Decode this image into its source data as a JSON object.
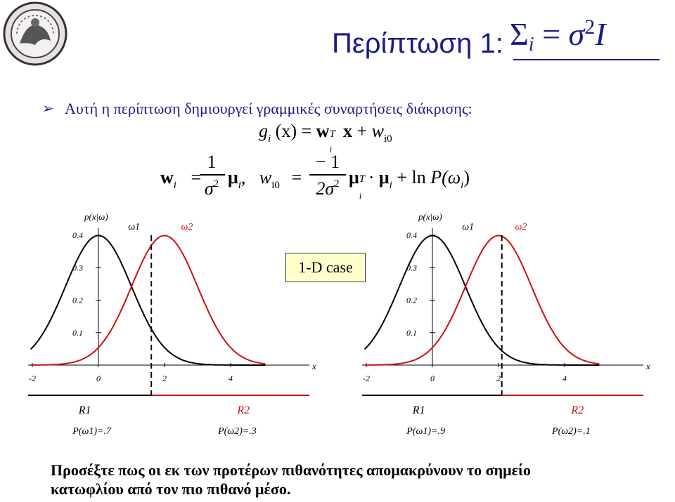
{
  "header": {
    "title": "Περίπτωση 1:",
    "formula": {
      "Sigma": "Σ",
      "sub": "i",
      "eq": "=",
      "sigma": "σ",
      "power": "2",
      "I": "I"
    }
  },
  "bullet": {
    "marker": "➢",
    "text": "Αυτή η περίπτωση δημιουργεί γραμμικές συναρτήσεις διάκρισης:"
  },
  "equations": {
    "g": "g",
    "i": "i",
    "x": "(x)",
    "eq": "=",
    "w": "w",
    "T": "T",
    "xb": "x",
    "plus": "+",
    "w_sym": "w",
    "i0": "i0",
    "one": "1",
    "minus_one": "− 1",
    "sigma2": "σ",
    "two": "2",
    "two_sigma": "2σ",
    "mu": "μ",
    "comma": ",",
    "dot": "·",
    "ln": "+ ln",
    "P": "P",
    "omega_open": "(ω",
    "close": ")"
  },
  "figure": {
    "case_label": "1-D case",
    "panels": [
      {
        "ylabel": "p(x|ω_i)",
        "prior_1": "P(ω_1)=.7",
        "prior_2": "P(ω_2)=.3",
        "region_1": "R",
        "region_1_sub": "1",
        "region_2": "R",
        "region_2_sub": "2",
        "threshold": 1.6,
        "y_ticks": [
          "0.4",
          "0.3",
          "0.2",
          "0.1"
        ],
        "x_ticks": [
          "-2",
          "0",
          "2",
          "4"
        ],
        "class_1": "ω",
        "class_1_sub": "1",
        "class_2": "ω",
        "class_2_sub": "2",
        "xlabel": "x"
      },
      {
        "ylabel": "p(x|ω_i)",
        "prior_1": "P(ω_1)=.9",
        "prior_2": "P(ω_2)=.1",
        "region_1": "R",
        "region_1_sub": "1",
        "region_2": "R",
        "region_2_sub": "2",
        "threshold": 2.1,
        "y_ticks": [
          "0.4",
          "0.3",
          "0.2",
          "0.1"
        ],
        "x_ticks": [
          "-2",
          "0",
          "2",
          "4"
        ],
        "class_1": "ω",
        "class_1_sub": "1",
        "class_2": "ω",
        "class_2_sub": "2",
        "xlabel": "x"
      }
    ],
    "chart_data": [
      {
        "type": "line",
        "xlim": [
          -2,
          5
        ],
        "ylim": [
          0,
          0.4
        ],
        "series": [
          {
            "mean": 0,
            "sd": 1
          },
          {
            "mean": 2,
            "sd": 1
          }
        ],
        "threshold": 1.6
      },
      {
        "type": "line",
        "xlim": [
          -2,
          5
        ],
        "ylim": [
          0,
          0.4
        ],
        "series": [
          {
            "mean": 0,
            "sd": 1
          },
          {
            "mean": 2,
            "sd": 1
          }
        ],
        "threshold": 2.1
      }
    ]
  },
  "footer": {
    "line1": "Προσέξτε πως οι εκ των προτέρων πιθανότητες απομακρύνουν το σημείο",
    "line2": "κατωφλίου από τον πιο πιθανό μέσο."
  },
  "colors": {
    "accent": "#1a1a8c",
    "red_curve": "#cc1111",
    "box": "#ffffcc"
  }
}
